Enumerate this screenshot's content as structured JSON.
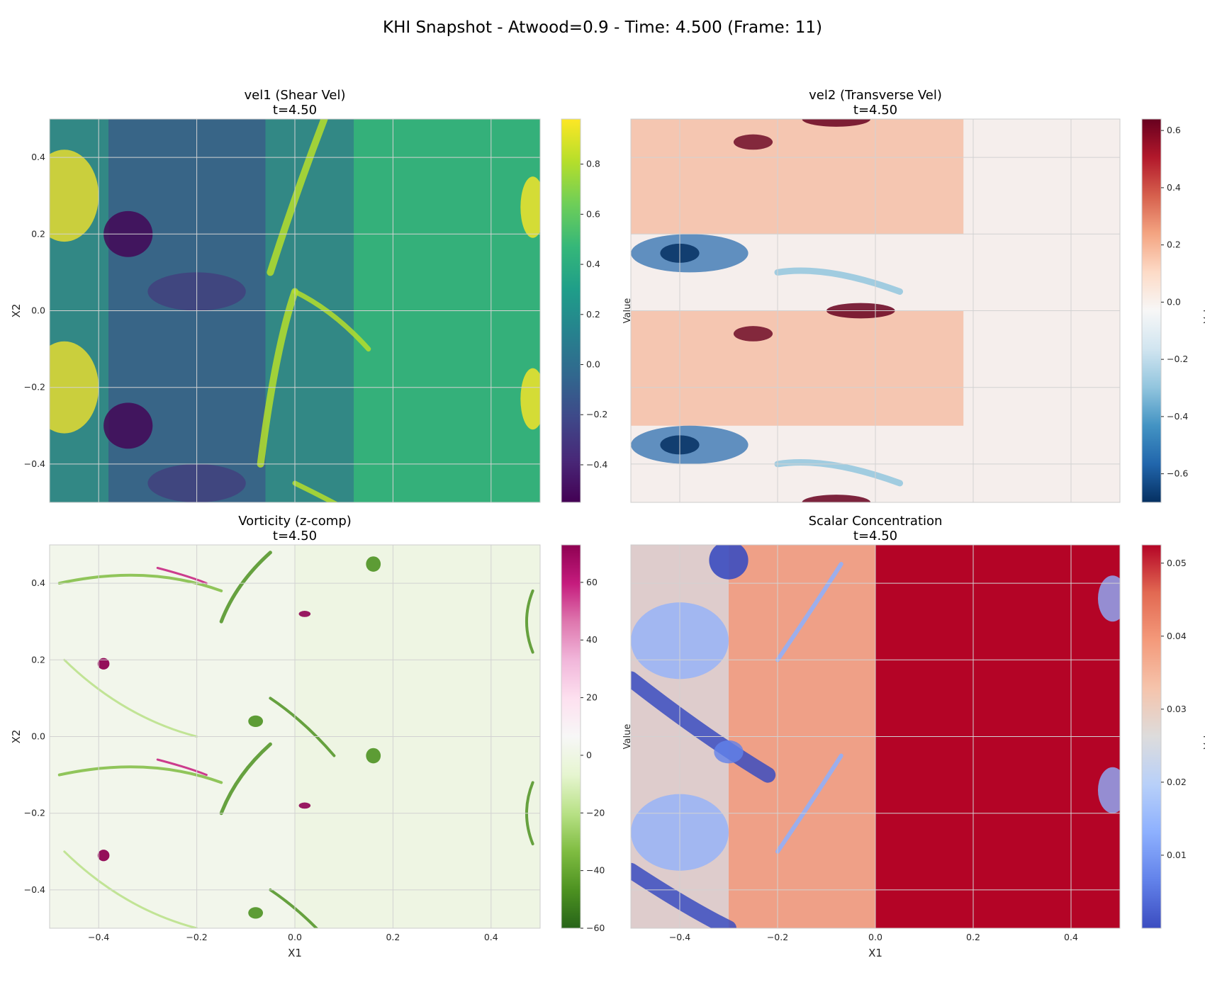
{
  "figure_title": "KHI Snapshot - Atwood=0.9 - Time: 4.500 (Frame: 11)",
  "chart_data": [
    {
      "type": "heatmap",
      "title": "vel1 (Shear Vel)",
      "subtitle": "t=4.50",
      "xlabel": "",
      "ylabel": "X2",
      "xlim": [
        -0.5,
        0.5
      ],
      "ylim": [
        -0.5,
        0.5
      ],
      "xticks": [],
      "yticks": [
        "−0.4",
        "−0.2",
        "0.0",
        "0.2",
        "0.4"
      ],
      "grid": true,
      "colormap": "viridis",
      "colorbar": {
        "label": "Value",
        "min": -0.55,
        "max": 0.98,
        "ticks": [
          "−0.4",
          "−0.2",
          "0.0",
          "0.2",
          "0.4",
          "0.6",
          "0.8"
        ],
        "tick_values": [
          -0.4,
          -0.2,
          0.0,
          0.2,
          0.4,
          0.6,
          0.8
        ]
      }
    },
    {
      "type": "heatmap",
      "title": "vel2 (Transverse Vel)",
      "subtitle": "t=4.50",
      "xlabel": "",
      "ylabel": "",
      "xlim": [
        -0.5,
        0.5
      ],
      "ylim": [
        -0.5,
        0.5
      ],
      "xticks": [],
      "yticks": [],
      "grid": true,
      "colormap": "RdBu_r",
      "colorbar": {
        "label": "Value",
        "min": -0.7,
        "max": 0.64,
        "ticks": [
          "−0.6",
          "−0.4",
          "−0.2",
          "0.0",
          "0.2",
          "0.4",
          "0.6"
        ],
        "tick_values": [
          -0.6,
          -0.4,
          -0.2,
          0.0,
          0.2,
          0.4,
          0.6
        ]
      }
    },
    {
      "type": "heatmap",
      "title": "Vorticity (z-comp)",
      "subtitle": "t=4.50",
      "xlabel": "X1",
      "ylabel": "X2",
      "xlim": [
        -0.5,
        0.5
      ],
      "ylim": [
        -0.5,
        0.5
      ],
      "xticks": [
        "−0.4",
        "−0.2",
        "0.0",
        "0.2",
        "0.4"
      ],
      "yticks": [
        "−0.4",
        "−0.2",
        "0.0",
        "0.2",
        "0.4"
      ],
      "grid": true,
      "colormap": "PiYG_r",
      "colorbar": {
        "label": "Value",
        "min": -60,
        "max": 73,
        "ticks": [
          "−60",
          "−40",
          "−20",
          "0",
          "20",
          "40",
          "60"
        ],
        "tick_values": [
          -60,
          -40,
          -20,
          0,
          20,
          40,
          60
        ]
      }
    },
    {
      "type": "heatmap",
      "title": "Scalar Concentration",
      "subtitle": "t=4.50",
      "xlabel": "X1",
      "ylabel": "",
      "xlim": [
        -0.5,
        0.5
      ],
      "ylim": [
        -0.5,
        0.5
      ],
      "xticks": [
        "−0.4",
        "−0.2",
        "0.0",
        "0.2",
        "0.4"
      ],
      "yticks": [],
      "grid": true,
      "colormap": "coolwarm",
      "colorbar": {
        "label": "Value",
        "min": 0.0,
        "max": 0.0525,
        "ticks": [
          "0.01",
          "0.02",
          "0.03",
          "0.04",
          "0.05"
        ],
        "tick_values": [
          0.01,
          0.02,
          0.03,
          0.04,
          0.05
        ]
      }
    }
  ]
}
